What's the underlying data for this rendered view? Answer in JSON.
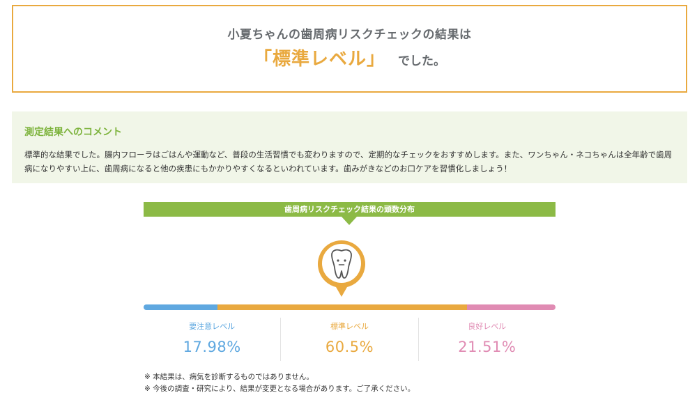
{
  "result": {
    "line1": "小夏ちゃんの歯周病リスクチェックの結果は",
    "level": "「標準レベル」",
    "suffix": "でした。"
  },
  "comment": {
    "title": "測定結果へのコメント",
    "body": "標準的な結果でした。腸内フローラはごはんや運動など、普段の生活習慣でも変わりますので、定期的なチェックをおすすめします。また、ワンちゃん・ネコちゃんは全年齢で歯周病になりやすい上に、歯周病になると他の疾患にもかかりやすくなるといわれています。歯みがきなどのお口ケアを習慣化しましょう！"
  },
  "distribution": {
    "header": "歯周病リスクチェック結果の頭数分布",
    "marker_icon": "tooth-icon",
    "colors": {
      "caution": "#5fa8e0",
      "standard": "#e9a93f",
      "good": "#e08bb3",
      "header": "#8cba46"
    },
    "levels": [
      {
        "label": "要注意レベル",
        "value": "17.98%",
        "percent": 17.98,
        "color": "#5fa8e0"
      },
      {
        "label": "標準レベル",
        "value": "60.5%",
        "percent": 60.5,
        "color": "#e9a93f"
      },
      {
        "label": "良好レベル",
        "value": "21.51%",
        "percent": 21.51,
        "color": "#e08bb3"
      }
    ]
  },
  "notes": [
    "※ 本結果は、病気を診断するものではありません。",
    "※ 今後の調査・研究により、結果が変更となる場合があります。ご了承ください。"
  ]
}
